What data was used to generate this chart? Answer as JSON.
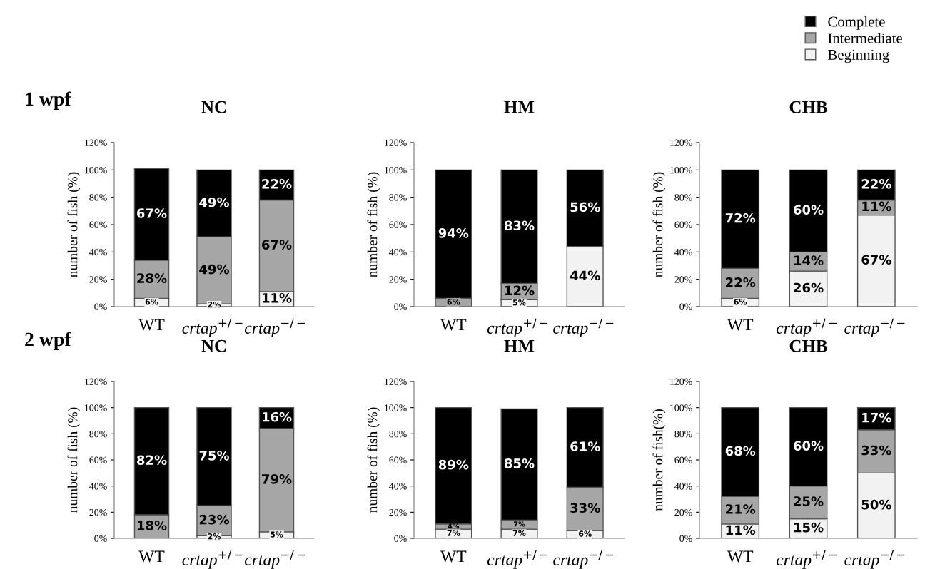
{
  "chart_data": [
    {
      "type": "bar",
      "stacked": true,
      "title": "NC",
      "ylabel": "number of fish (%)",
      "legend": "top right",
      "annotations": [
        "1 wpf"
      ],
      "categories": [
        "WT",
        "crtap$^{+/−}$",
        "crtap$^{−/−}$"
      ],
      "ylim": [
        0,
        120
      ],
      "yticks": [
        {
          "value": 0,
          "label": "0%"
        },
        {
          "value": 20,
          "label": "20%"
        },
        {
          "value": 40,
          "label": "40%"
        },
        {
          "value": 60,
          "label": "60%"
        },
        {
          "value": 80,
          "label": "80%"
        },
        {
          "value": 100,
          "label": "100%"
        },
        {
          "value": 120,
          "label": "120%"
        }
      ],
      "series": [
        {
          "name": "Beginning",
          "color": "#f2f2f2",
          "values": [
            6,
            2,
            11
          ],
          "value_labels": [
            "6%",
            "2%",
            "11%"
          ]
        },
        {
          "name": "Intermediate",
          "color": "#a6a6a6",
          "values": [
            28,
            49,
            67
          ],
          "value_labels": [
            "28%",
            "49%",
            "67%"
          ]
        },
        {
          "name": "Complete",
          "color": "#000000",
          "values": [
            67,
            49,
            22
          ],
          "value_labels": [
            "67%",
            "49%",
            "22%"
          ]
        }
      ]
    },
    {
      "type": "bar",
      "stacked": true,
      "title": "HM",
      "ylabel": "number of fish (%)",
      "categories": [
        "WT",
        "crtap$^{+/−}$",
        "crtap$^{−/−}$"
      ],
      "ylim": [
        0,
        120
      ],
      "yticks": [
        {
          "value": 0,
          "label": "0%"
        },
        {
          "value": 20,
          "label": "20%"
        },
        {
          "value": 40,
          "label": "40%"
        },
        {
          "value": 60,
          "label": "60%"
        },
        {
          "value": 80,
          "label": "80%"
        },
        {
          "value": 100,
          "label": "100%"
        },
        {
          "value": 120,
          "label": "120%"
        }
      ],
      "series": [
        {
          "color": "#f2f2f2",
          "values": [
            0,
            5,
            44
          ],
          "value_labels": [
            null,
            "5%",
            "44%"
          ]
        },
        {
          "color": "#a6a6a6",
          "values": [
            6,
            12,
            0
          ],
          "value_labels": [
            "6%",
            "12%",
            null
          ]
        },
        {
          "color": "#000000",
          "values": [
            94,
            83,
            56
          ],
          "value_labels": [
            "94%",
            "83%",
            "56%"
          ]
        }
      ]
    },
    {
      "type": "bar",
      "stacked": true,
      "title": "CHB",
      "ylabel": "number of fish (%)",
      "categories": [
        "WT",
        "crtap$^{+/−}$",
        "crtap$^{−/−}$"
      ],
      "ylim": [
        0,
        120
      ],
      "yticks": [
        {
          "value": 0,
          "label": "0%"
        },
        {
          "value": 20,
          "label": "20%"
        },
        {
          "value": 40,
          "label": "40%"
        },
        {
          "value": 60,
          "label": "60%"
        },
        {
          "value": 80,
          "label": "80%"
        },
        {
          "value": 100,
          "label": "100%"
        },
        {
          "value": 120,
          "label": "120%"
        }
      ],
      "series": [
        {
          "color": "#f2f2f2",
          "values": [
            6,
            26,
            67
          ],
          "value_labels": [
            "6%",
            "26%",
            "67%"
          ]
        },
        {
          "color": "#a6a6a6",
          "values": [
            22,
            14,
            11
          ],
          "value_labels": [
            "22%",
            "14%",
            "11%"
          ]
        },
        {
          "color": "#000000",
          "values": [
            72,
            60,
            22
          ],
          "value_labels": [
            "72%",
            "60%",
            "22%"
          ]
        }
      ]
    },
    {
      "type": "bar",
      "stacked": true,
      "title": "NC",
      "ylabel": "number of fish (%)",
      "annotations": [
        "2 wpf"
      ],
      "categories": [
        "WT",
        "crtap$^{+/−}$",
        "crtap$^{−/−}$"
      ],
      "ylim": [
        0,
        120
      ],
      "yticks": [
        {
          "value": 0,
          "label": "0%"
        },
        {
          "value": 20,
          "label": "20%"
        },
        {
          "value": 40,
          "label": "40%"
        },
        {
          "value": 60,
          "label": "60%"
        },
        {
          "value": 80,
          "label": "80%"
        },
        {
          "value": 100,
          "label": "100%"
        },
        {
          "value": 120,
          "label": "120%"
        }
      ],
      "series": [
        {
          "color": "#f2f2f2",
          "values": [
            0,
            2,
            5
          ],
          "value_labels": [
            null,
            "2%",
            "5%"
          ]
        },
        {
          "color": "#a6a6a6",
          "values": [
            18,
            23,
            79
          ],
          "value_labels": [
            "18%",
            "23%",
            "79%"
          ]
        },
        {
          "color": "#000000",
          "values": [
            82,
            75,
            16
          ],
          "value_labels": [
            "82%",
            "75%",
            "16%"
          ]
        }
      ]
    },
    {
      "type": "bar",
      "stacked": true,
      "title": "HM",
      "ylabel": "number of fish (%)",
      "categories": [
        "WT",
        "crtap$^{+/−}$",
        "crtap$^{−/−}$"
      ],
      "ylim": [
        0,
        120
      ],
      "yticks": [
        {
          "value": 0,
          "label": "0%"
        },
        {
          "value": 20,
          "label": "20%"
        },
        {
          "value": 40,
          "label": "40%"
        },
        {
          "value": 60,
          "label": "60%"
        },
        {
          "value": 80,
          "label": "80%"
        },
        {
          "value": 100,
          "label": "100%"
        },
        {
          "value": 120,
          "label": "120%"
        }
      ],
      "series": [
        {
          "color": "#f2f2f2",
          "values": [
            7,
            7,
            6
          ],
          "value_labels": [
            "7%",
            "7%",
            "6%"
          ]
        },
        {
          "color": "#a6a6a6",
          "values": [
            4,
            7,
            33
          ],
          "value_labels": [
            "4%",
            "7%",
            "33%"
          ]
        },
        {
          "color": "#000000",
          "values": [
            89,
            85,
            61
          ],
          "value_labels": [
            "89%",
            "85%",
            "61%"
          ]
        }
      ]
    },
    {
      "type": "bar",
      "stacked": true,
      "title": "CHB",
      "ylabel": "number of fish(%)",
      "categories": [
        "WT",
        "crtap$^{+/−}$",
        "crtap$^{−/−}$"
      ],
      "ylim": [
        0,
        120
      ],
      "yticks": [
        {
          "value": 0,
          "label": "0%"
        },
        {
          "value": 20,
          "label": "20%"
        },
        {
          "value": 40,
          "label": "40%"
        },
        {
          "value": 60,
          "label": "60%"
        },
        {
          "value": 80,
          "label": "80%"
        },
        {
          "value": 100,
          "label": "100%"
        },
        {
          "value": 120,
          "label": "120%"
        }
      ],
      "series": [
        {
          "color": "#f2f2f2",
          "values": [
            11,
            15,
            50
          ],
          "value_labels": [
            "11%",
            "15%",
            "50%"
          ]
        },
        {
          "color": "#a6a6a6",
          "values": [
            21,
            25,
            33
          ],
          "value_labels": [
            "21%",
            "25%",
            "33%"
          ]
        },
        {
          "color": "#000000",
          "values": [
            68,
            60,
            17
          ],
          "value_labels": [
            "68%",
            "60%",
            "17%"
          ]
        }
      ]
    }
  ]
}
